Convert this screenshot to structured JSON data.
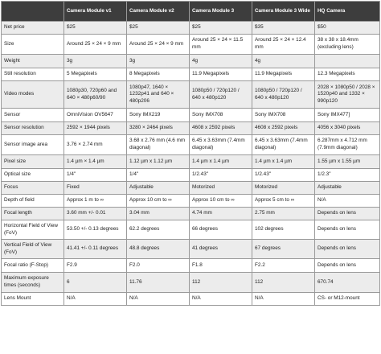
{
  "table": {
    "headers": [
      "",
      "Camera Module v1",
      "Camera Module v2",
      "Camera Module 3",
      "Camera Module 3 Wide",
      "HQ Camera"
    ],
    "rows": [
      [
        "Net price",
        "$25",
        "$25",
        "$25",
        "$35",
        "$50"
      ],
      [
        "Size",
        "Around 25 × 24 × 9 mm",
        "Around 25 × 24 × 9 mm",
        "Around 25 × 24 × 11.5 mm",
        "Around 25 × 24 × 12.4 mm",
        "38 x 38 x 18.4mm (excluding lens)"
      ],
      [
        "Weight",
        "3g",
        "3g",
        "4g",
        "4g",
        ""
      ],
      [
        "Still resolution",
        "5 Megapixels",
        "8 Megapixels",
        "11.9 Megapixels",
        "11.9 Megapixels",
        "12.3 Megapixels"
      ],
      [
        "Video modes",
        "1080p30, 720p60 and 640 × 480p60/90",
        "1080p47, 1640 × 1232p41 and 640 × 480p206",
        "1080p50 / 720p120 / 640 x 480p120",
        "1080p50 / 720p120 / 640 x 480p120",
        "2028 × 1080p50 / 2028 × 1520p40 and 1332 × 990p120"
      ],
      [
        "Sensor",
        "OmniVision OV5647",
        "Sony IMX219",
        "Sony IMX708",
        "Sony IMX708",
        "Sony IMX477]"
      ],
      [
        "Sensor resolution",
        "2592 × 1944 pixels",
        "3280 × 2464 pixels",
        "4608 x 2592 pixels",
        "4608 x 2592 pixels",
        "4056 x 3040 pixels"
      ],
      [
        "Sensor image area",
        "3.76 × 2.74 mm",
        "3.68 x 2.76 mm (4.6 mm diagonal)",
        "6.45 x 3.63mm (7.4mm diagonal)",
        "6.45 x 3.63mm (7.4mm diagonal)",
        "6.287mm x 4.712 mm (7.9mm diagonal)"
      ],
      [
        "Pixel size",
        "1.4 µm × 1.4 µm",
        "1.12 µm x 1.12 µm",
        "1.4 µm x 1.4 µm",
        "1.4 µm x 1.4 µm",
        "1.55 µm x 1.55 µm"
      ],
      [
        "Optical size",
        "1/4\"",
        "1/4\"",
        "1/2.43\"",
        "1/2.43\"",
        "1/2.3\""
      ],
      [
        "Focus",
        "Fixed",
        "Adjustable",
        "Motorized",
        "Motorized",
        "Adjustable"
      ],
      [
        "Depth of field",
        "Approx 1 m to ∞",
        "Approx 10 cm to ∞",
        "Approx 10 cm to ∞",
        "Approx 5 cm to ∞",
        "N/A"
      ],
      [
        "Focal length",
        "3.60 mm +/- 0.01",
        "3.04 mm",
        "4.74 mm",
        "2.75 mm",
        "Depends on lens"
      ],
      [
        "Horizontal Field of View (FoV)",
        "53.50 +/- 0.13 degrees",
        "62.2 degrees",
        "66 degrees",
        "102 degrees",
        "Depends on lens"
      ],
      [
        "Vertical Field of View (FoV)",
        "41.41 +/- 0.11 degrees",
        "48.8 degrees",
        "41 degrees",
        "67 degrees",
        "Depends on lens"
      ],
      [
        "Focal ratio (F-Stop)",
        "F2.9",
        "F2.0",
        "F1.8",
        "F2.2",
        "Depends on lens"
      ],
      [
        "Maximum exposure times (seconds)",
        "6",
        "11.76",
        "112",
        "112",
        "670.74"
      ],
      [
        "Lens Mount",
        "N/A",
        "N/A",
        "N/A",
        "N/A",
        "CS- or M12-mount"
      ]
    ]
  }
}
